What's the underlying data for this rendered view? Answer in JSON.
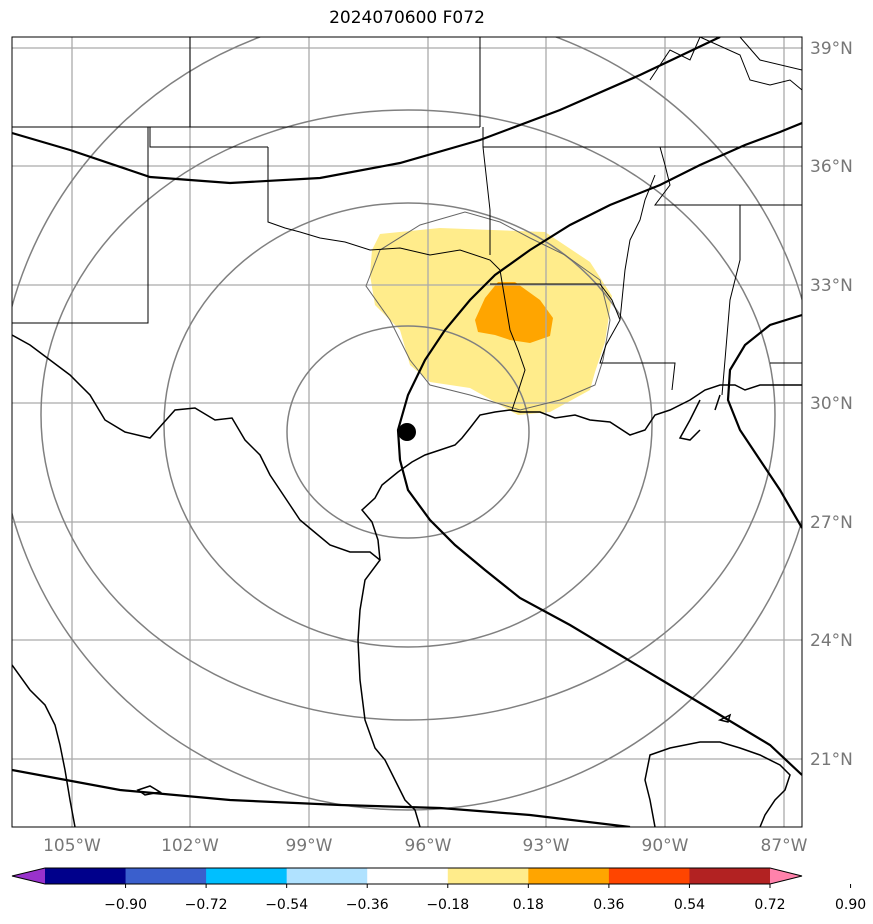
{
  "title": "2024070600 F072",
  "longitudes": [
    "105°W",
    "102°W",
    "99°W",
    "96°W",
    "93°W",
    "90°W",
    "87°W"
  ],
  "latitudes": [
    "39°N",
    "36°N",
    "33°N",
    "30°N",
    "27°N",
    "24°N",
    "21°N"
  ],
  "storm_center_marker": "filled-black-dot",
  "colorbar": {
    "ticks": [
      "−0.90",
      "−0.72",
      "−0.54",
      "−0.36",
      "−0.18",
      "0.18",
      "0.36",
      "0.54",
      "0.72",
      "0.90"
    ],
    "colors": [
      "#9932cc",
      "#00008b",
      "#3a5fcd",
      "#00bfff",
      "#b0e2ff",
      "#ffffff",
      "#ffec8b",
      "#ffa500",
      "#ff4500",
      "#b22222",
      "#ff82ab"
    ]
  },
  "filled_contour_colors": {
    "0.18-0.36": "#ffec8b",
    "0.36-0.54": "#ffa500"
  }
}
